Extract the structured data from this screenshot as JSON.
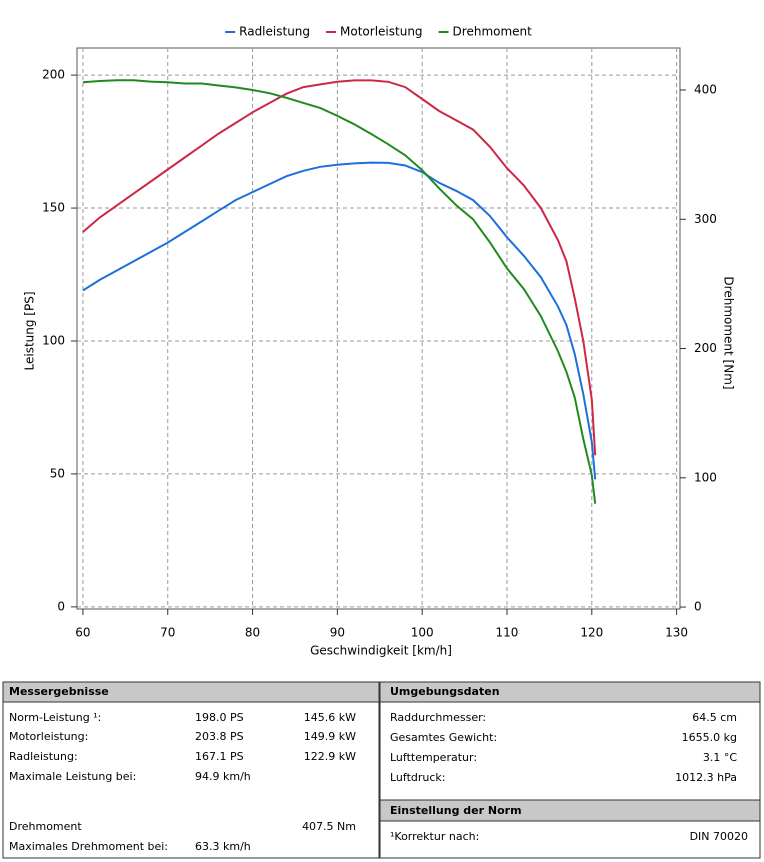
{
  "chart_data": {
    "type": "line",
    "xlabel": "Geschwindigkeit [km/h]",
    "ylabel": "Leistung [PS]",
    "y2label": "Drehmoment [Nm]",
    "x": [
      60,
      62,
      64,
      66,
      68,
      70,
      72,
      74,
      76,
      78,
      80,
      82,
      84,
      86,
      88,
      90,
      92,
      94,
      96,
      98,
      100,
      102,
      104,
      106,
      108,
      110,
      112,
      114,
      116,
      117,
      118,
      119,
      120,
      120.4
    ],
    "series": [
      {
        "name": "Radleistung",
        "color": "#1e6fd9",
        "values": [
          119,
          123,
          126.5,
          130,
          133.5,
          137,
          141,
          145,
          149,
          153,
          156,
          159,
          162,
          164,
          165.5,
          166.3,
          166.8,
          167.1,
          167,
          166,
          163.5,
          159.5,
          156.5,
          153,
          147,
          139,
          132,
          124,
          113,
          106,
          95,
          80,
          62,
          48
        ]
      },
      {
        "name": "Motorleistung",
        "color": "#cc2846",
        "values": [
          141,
          146.5,
          151,
          155.5,
          160,
          164.5,
          169,
          173.5,
          178,
          182,
          186,
          189.5,
          193,
          195.5,
          196.5,
          197.5,
          198,
          198,
          197.5,
          195.5,
          191,
          186.5,
          183,
          179.5,
          173,
          165,
          158.5,
          150,
          138,
          130,
          116,
          100,
          78,
          57
        ]
      },
      {
        "name": "Drehmoment",
        "color": "#208a20",
        "axis": "y2",
        "values": [
          406,
          407,
          407.5,
          407.5,
          406.5,
          406,
          405,
          405,
          403.5,
          402,
          400,
          397.5,
          394,
          390,
          386,
          380,
          373.5,
          366,
          358,
          349.5,
          338,
          324,
          311,
          300,
          282,
          262,
          246,
          225,
          198,
          182,
          162,
          130,
          102,
          80
        ]
      }
    ],
    "xlim": [
      59.3,
      130.4
    ],
    "xticks": [
      60,
      70,
      80,
      90,
      100,
      110,
      120,
      130
    ],
    "ylim": [
      -0.8,
      210.2
    ],
    "yticks": [
      0,
      50,
      100,
      150,
      200
    ],
    "y2lim": [
      -1.5,
      432.5
    ],
    "y2ticks": [
      0,
      100,
      200,
      300,
      400
    ],
    "grid": true,
    "legend": "top"
  },
  "results": {
    "title": "Messergebnisse",
    "rows": [
      {
        "label": "Norm-Leistung ¹:",
        "value": "198.0 PS",
        "value2": "145.6 kW",
        "color": "#cc2846"
      },
      {
        "label": "Motorleistung:",
        "value": "203.8 PS",
        "value2": "149.9 kW",
        "color": "#cc2846"
      },
      {
        "label": "Radleistung:",
        "value": "167.1 PS",
        "value2": "122.9 kW",
        "color": "#1e6fd9"
      },
      {
        "label": "Maximale Leistung bei:",
        "value": "94.9 km/h",
        "color": "#000000"
      },
      {
        "label": "Drehmoment",
        "value2": "407.5 Nm",
        "color": "#208a20"
      },
      {
        "label": "Maximales Drehmoment bei:",
        "value": "63.3 km/h",
        "color": "#000000"
      }
    ]
  },
  "environment": {
    "title": "Umgebungsdaten",
    "rows": [
      {
        "label": "Raddurchmesser:",
        "value": "64.5 cm"
      },
      {
        "label": "Gesamtes Gewicht:",
        "value": "1655.0 kg"
      },
      {
        "label": "Lufttemperatur:",
        "value": "3.1 °C"
      },
      {
        "label": "Luftdruck:",
        "value": "1012.3 hPa"
      }
    ]
  },
  "norm": {
    "title": "Einstellung der Norm",
    "rows": [
      {
        "label": "¹Korrektur nach:",
        "value": "DIN 70020"
      }
    ]
  }
}
